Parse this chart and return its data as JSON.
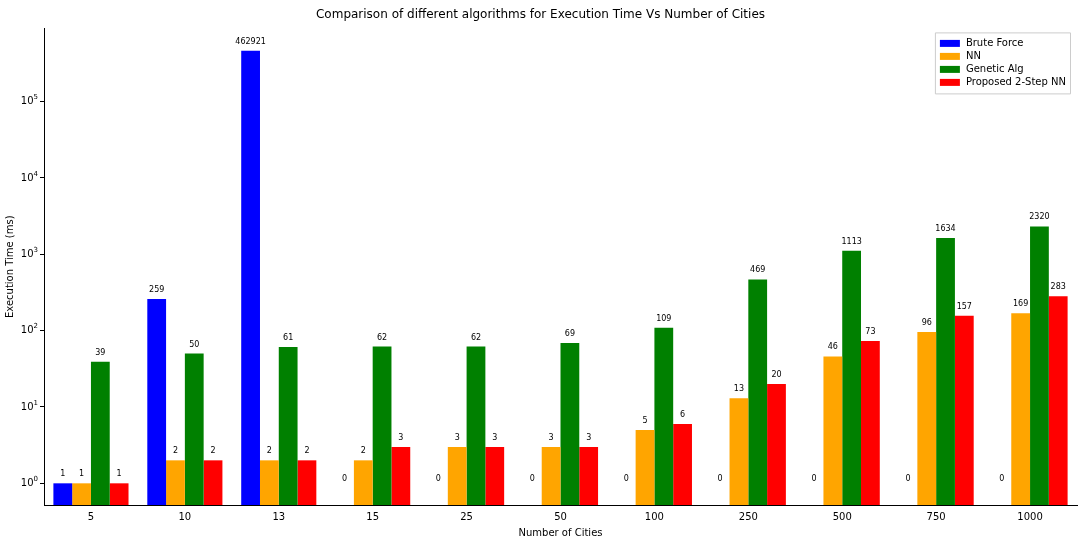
{
  "chart_data": {
    "type": "bar",
    "title": "Comparison of different algorithms for Execution Time Vs Number of Cities",
    "xlabel": "Number of Cities",
    "ylabel": "Execution Time (ms)",
    "categories": [
      "5",
      "10",
      "13",
      "15",
      "25",
      "50",
      "100",
      "250",
      "500",
      "750",
      "1000"
    ],
    "series": [
      {
        "name": "Brute Force",
        "color": "#0000ff",
        "values": [
          1,
          259,
          462921,
          null,
          null,
          null,
          null,
          null,
          null,
          null,
          null
        ],
        "value_labels": [
          "1",
          "259",
          "462921",
          "0",
          "0",
          "0",
          "0",
          "0",
          "0",
          "0",
          "0"
        ]
      },
      {
        "name": "NN",
        "color": "#ffa500",
        "values": [
          1,
          2,
          2,
          2,
          3,
          3,
          5,
          13,
          46,
          96,
          169
        ],
        "value_labels": [
          "1",
          "2",
          "2",
          "2",
          "3",
          "3",
          "5",
          "13",
          "46",
          "96",
          "169"
        ]
      },
      {
        "name": "Genetic Alg",
        "color": "#008000",
        "values": [
          39,
          50,
          61,
          62,
          62,
          69,
          109,
          469,
          1113,
          1634,
          2320
        ],
        "value_labels": [
          "39",
          "50",
          "61",
          "62",
          "62",
          "69",
          "109",
          "469",
          "1113",
          "1634",
          "2320"
        ]
      },
      {
        "name": "Proposed 2-Step NN",
        "color": "#ff0000",
        "values": [
          1,
          2,
          2,
          3,
          3,
          3,
          6,
          20,
          73,
          157,
          283
        ],
        "value_labels": [
          "1",
          "2",
          "2",
          "3",
          "3",
          "3",
          "6",
          "20",
          "73",
          "157",
          "283"
        ]
      }
    ],
    "log": "y",
    "ylim": [
      0.52,
      910000
    ],
    "yticks": [
      {
        "value": 1,
        "label": "10$^{0}$"
      },
      {
        "value": 10,
        "label": "10$^{1}$"
      },
      {
        "value": 100,
        "label": "10$^{2}$"
      },
      {
        "value": 1000,
        "label": "10$^{3}$"
      },
      {
        "value": 10000,
        "label": "10$^{4}$"
      },
      {
        "value": 100000,
        "label": "10$^{5}$"
      }
    ],
    "grid": false,
    "legend": "top right"
  }
}
